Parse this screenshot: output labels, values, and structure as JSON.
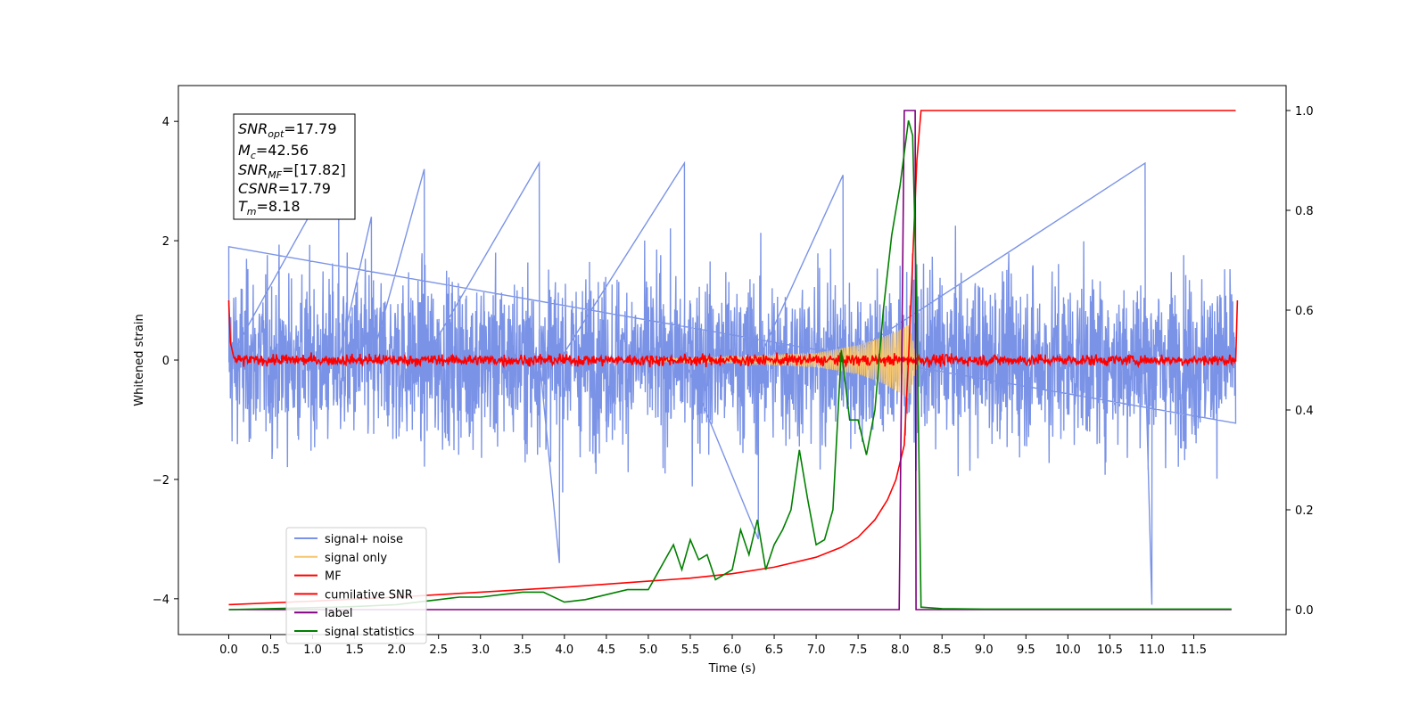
{
  "chart_data": {
    "type": "line",
    "xlabel": "Time (s)",
    "ylabel": "Whitened strain",
    "xlim": [
      -0.6,
      12.6
    ],
    "ylim": [
      -4.6,
      4.6
    ],
    "y2lim": [
      -0.05,
      1.05
    ],
    "x_ticks": [
      "0.0",
      "0.5",
      "1.0",
      "1.5",
      "2.0",
      "2.5",
      "3.0",
      "3.5",
      "4.0",
      "4.5",
      "5.0",
      "5.5",
      "6.0",
      "6.5",
      "7.0",
      "7.5",
      "8.0",
      "8.5",
      "9.0",
      "9.5",
      "10.0",
      "10.5",
      "11.0",
      "11.5"
    ],
    "y_ticks": [
      "4",
      "2",
      "0",
      "−2",
      "−4"
    ],
    "y2_ticks": [
      "1.0",
      "0.8",
      "0.6",
      "0.4",
      "0.2",
      "0.0"
    ],
    "legend_position": "lower-left",
    "grid": false,
    "info_box": {
      "line1_main": "SNR",
      "line1_sub": "opt",
      "line1_value": "=17.79",
      "line2_main": "M",
      "line2_sub": "c",
      "line2_value": "=42.56",
      "line3_main": "SNR",
      "line3_sub": "MF",
      "line3_value": "=[17.82]",
      "line4_main": "CSNR",
      "line4_value": "=17.79",
      "line5_main": "T",
      "line5_sub": "m",
      "line5_value": "=8.18"
    },
    "series": [
      {
        "name": "signal+ noise",
        "axis": "left",
        "color": "#7b93e6",
        "description_range": [
          -3.3,
          3.3
        ],
        "x": [
          0,
          1.31,
          1.7,
          2.33,
          3.7,
          3.94,
          5.43,
          6.31,
          7.32,
          10.92,
          11.0
        ],
        "y": [
          1.9,
          3.3,
          2.4,
          3.2,
          3.3,
          -3.4,
          3.3,
          -3.0,
          3.1,
          3.3,
          -4.1
        ]
      },
      {
        "name": "signal only",
        "axis": "left",
        "color": "#f5c66e",
        "x": [
          0,
          5,
          6,
          7,
          7.5,
          7.8,
          8.0,
          8.1,
          8.18,
          8.25,
          12
        ],
        "y": [
          0,
          0.02,
          0.05,
          0.12,
          0.25,
          0.4,
          0.55,
          0.65,
          0.2,
          0,
          0
        ]
      },
      {
        "name": "MF",
        "axis": "left",
        "color": "#ff0000",
        "x": [
          0,
          0.02,
          0.06,
          12.0,
          12.02
        ],
        "y": [
          1.0,
          0.3,
          0.0,
          0.0,
          1.0
        ]
      },
      {
        "name": "cumilative SNR",
        "axis": "right",
        "color": "#ff0000",
        "x": [
          0,
          1,
          2,
          3,
          4,
          5,
          5.5,
          6,
          6.5,
          7,
          7.3,
          7.5,
          7.7,
          7.85,
          7.95,
          8.05,
          8.1,
          8.15,
          8.2,
          8.25,
          12
        ],
        "y": [
          0.01,
          0.017,
          0.025,
          0.035,
          0.045,
          0.057,
          0.063,
          0.072,
          0.085,
          0.105,
          0.125,
          0.145,
          0.18,
          0.22,
          0.26,
          0.33,
          0.5,
          0.7,
          0.9,
          1.0,
          1.0
        ]
      },
      {
        "name": "label",
        "axis": "right",
        "color": "#800080",
        "x": [
          0,
          7.99,
          8.05,
          8.18,
          8.19,
          11.95
        ],
        "y": [
          0.0,
          0.0,
          1.0,
          1.0,
          0.0,
          0.0
        ]
      },
      {
        "name": "signal statistics",
        "axis": "right",
        "color": "#008000",
        "x": [
          0,
          0.5,
          1.0,
          1.5,
          2.0,
          2.25,
          2.5,
          2.75,
          3.0,
          3.25,
          3.5,
          3.75,
          4.0,
          4.25,
          4.5,
          4.75,
          5.0,
          5.1,
          5.2,
          5.3,
          5.4,
          5.5,
          5.6,
          5.7,
          5.8,
          5.9,
          6.0,
          6.1,
          6.2,
          6.3,
          6.4,
          6.5,
          6.6,
          6.7,
          6.8,
          6.9,
          7.0,
          7.1,
          7.2,
          7.3,
          7.4,
          7.5,
          7.6,
          7.7,
          7.8,
          7.9,
          8.0,
          8.1,
          8.15,
          8.2,
          8.25,
          8.5,
          9.0,
          10.0,
          11.0,
          11.95
        ],
        "y": [
          0.0,
          0.002,
          0.004,
          0.006,
          0.01,
          0.015,
          0.02,
          0.025,
          0.025,
          0.03,
          0.035,
          0.035,
          0.015,
          0.02,
          0.03,
          0.04,
          0.04,
          0.07,
          0.1,
          0.13,
          0.08,
          0.14,
          0.1,
          0.11,
          0.06,
          0.07,
          0.08,
          0.16,
          0.11,
          0.18,
          0.08,
          0.13,
          0.16,
          0.2,
          0.32,
          0.22,
          0.13,
          0.14,
          0.2,
          0.52,
          0.38,
          0.38,
          0.31,
          0.4,
          0.6,
          0.75,
          0.85,
          0.98,
          0.95,
          0.6,
          0.005,
          0.002,
          0.001,
          0.001,
          0.001,
          0.001
        ]
      }
    ]
  }
}
